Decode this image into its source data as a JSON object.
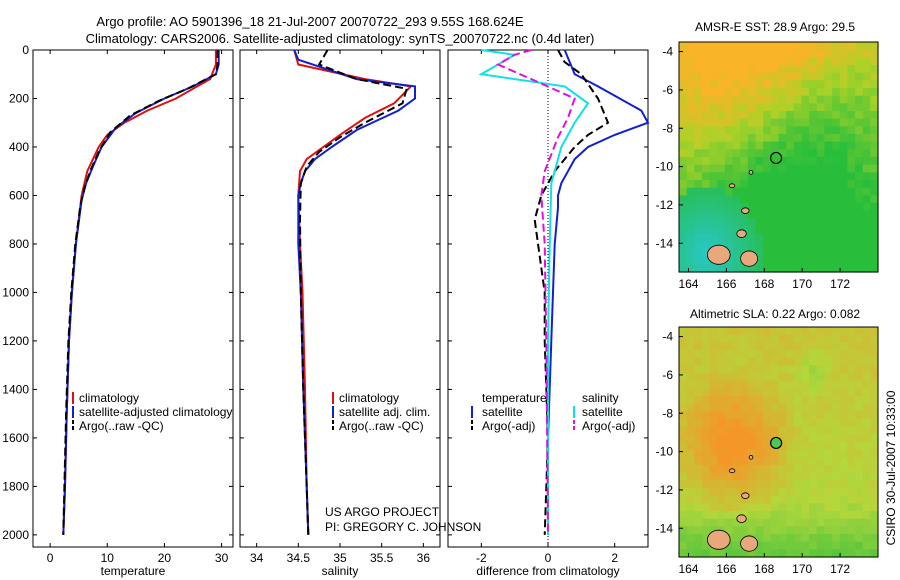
{
  "header": {
    "line1": "Argo profile: AO 5901396_18 21-Jul-2007 20070722_293 9.55S 168.624E",
    "line2": "Climatology: CARS2006. Satellite-adjusted climatology: synTS_20070722.nc (0.4d later)"
  },
  "side_stamp": "CSIRO 30-Jul-2007 10:33:00",
  "project": {
    "line1": "US ARGO PROJECT",
    "line2": "PI: GREGORY C. JOHNSON"
  },
  "colors": {
    "red": "#e01010",
    "blue": "#1020d0",
    "black": "#000000",
    "cyan": "#10e0e8",
    "magenta": "#e010e0"
  },
  "chart_data": [
    {
      "type": "line",
      "title": "",
      "xlabel": "temperature",
      "ylabel": "",
      "xlim": [
        -3,
        32
      ],
      "ylim": [
        2050,
        0
      ],
      "xticks": [
        0,
        10,
        20,
        30
      ],
      "yticks": [
        0,
        200,
        400,
        600,
        800,
        1000,
        1200,
        1400,
        1600,
        1800,
        2000
      ],
      "legend": [
        "climatology",
        "satellite-adjusted climatology",
        "Argo(..raw -QC)"
      ],
      "series": [
        {
          "name": "climatology",
          "color": "red",
          "dash": "solid",
          "x": [
            29,
            29,
            28,
            22,
            17,
            13,
            10,
            8.5,
            7.5,
            6.5,
            5.5,
            4.5,
            3.8,
            3.3,
            2.9,
            2.6,
            2.3
          ],
          "y": [
            0,
            60,
            120,
            200,
            250,
            300,
            350,
            400,
            450,
            500,
            600,
            800,
            1000,
            1200,
            1500,
            1800,
            2000
          ]
        },
        {
          "name": "satellite-adjusted climatology",
          "color": "blue",
          "dash": "solid",
          "x": [
            29.5,
            29.5,
            29,
            25,
            20,
            15,
            11.5,
            9,
            7.5,
            6.3,
            5.5,
            4.5,
            3.8,
            3.3,
            2.9,
            2.6,
            2.3
          ],
          "y": [
            0,
            60,
            100,
            150,
            200,
            260,
            320,
            400,
            480,
            550,
            620,
            800,
            1000,
            1200,
            1500,
            1800,
            2000
          ]
        },
        {
          "name": "Argo(..raw -QC)",
          "color": "black",
          "dash": "dash",
          "x": [
            29.3,
            29.3,
            29,
            24,
            19,
            14,
            10.5,
            8.5,
            7,
            6,
            5.3,
            4.4,
            3.7,
            3.2,
            2.8,
            2.5,
            2.3
          ],
          "y": [
            0,
            60,
            100,
            160,
            210,
            270,
            340,
            420,
            500,
            570,
            640,
            800,
            1000,
            1200,
            1500,
            1800,
            2000
          ]
        }
      ]
    },
    {
      "type": "line",
      "xlabel": "salinity",
      "xlim": [
        33.8,
        36.2
      ],
      "ylim": [
        2050,
        0
      ],
      "xticks": [
        34,
        34.5,
        35,
        35.5,
        36
      ],
      "xticklabels": [
        "34",
        "34.5",
        "35",
        "35.5",
        "36"
      ],
      "legend": [
        "climatology",
        "satellite adj. clim.",
        "Argo(..raw -QC)"
      ],
      "series": [
        {
          "name": "climatology",
          "color": "red",
          "dash": "solid",
          "x": [
            34.45,
            34.5,
            35.3,
            35.85,
            35.65,
            35.3,
            35.0,
            34.8,
            34.6,
            34.52,
            34.5,
            34.52,
            34.55,
            34.58,
            34.6,
            34.62
          ],
          "y": [
            0,
            60,
            120,
            150,
            220,
            280,
            350,
            400,
            450,
            500,
            600,
            800,
            1000,
            1400,
            1800,
            2000
          ]
        },
        {
          "name": "satellite adj. clim.",
          "color": "blue",
          "dash": "solid",
          "x": [
            34.45,
            34.5,
            35.2,
            35.9,
            35.9,
            35.7,
            35.2,
            34.9,
            34.7,
            34.58,
            34.53,
            34.5,
            34.5,
            34.53,
            34.56,
            34.6,
            34.62
          ],
          "y": [
            0,
            40,
            120,
            150,
            200,
            250,
            330,
            400,
            450,
            500,
            550,
            600,
            800,
            1000,
            1400,
            1800,
            2000
          ]
        },
        {
          "name": "Argo(..raw -QC)",
          "color": "black",
          "dash": "dash",
          "x": [
            34.85,
            34.75,
            35.2,
            35.8,
            35.75,
            35.3,
            35.0,
            34.75,
            34.6,
            34.53,
            34.52,
            34.53,
            34.56,
            34.6,
            34.62
          ],
          "y": [
            0,
            60,
            120,
            160,
            220,
            300,
            360,
            420,
            480,
            550,
            700,
            1000,
            1400,
            1800,
            2000
          ]
        }
      ]
    },
    {
      "type": "line",
      "xlabel": "difference from climatology",
      "xlim": [
        -3,
        3
      ],
      "ylim": [
        2050,
        0
      ],
      "xticks": [
        -2,
        0,
        2
      ],
      "legend_groups": [
        {
          "title": "temperature",
          "items": [
            "satellite",
            "Argo(-adj)"
          ]
        },
        {
          "title": "salinity",
          "items": [
            "satellite",
            "Argo(-adj)"
          ]
        }
      ],
      "series": [
        {
          "name": "temperature satellite",
          "color": "blue",
          "dash": "solid",
          "x": [
            0.5,
            0.8,
            1.5,
            2.8,
            3.0,
            2.0,
            1.2,
            0.8,
            0.6,
            0.4,
            0.3,
            0.3,
            0.2,
            0.1,
            0.0,
            0.0
          ],
          "y": [
            0,
            100,
            150,
            250,
            300,
            350,
            400,
            450,
            500,
            550,
            600,
            650,
            800,
            1200,
            1600,
            2000
          ]
        },
        {
          "name": "temperature Argo(-adj)",
          "color": "black",
          "dash": "dash",
          "x": [
            0.3,
            0.5,
            1.0,
            1.5,
            1.8,
            1.2,
            0.8,
            0.5,
            0.2,
            0.0,
            -0.2,
            -0.4,
            -0.1,
            -0.1,
            0.0,
            -0.1
          ],
          "y": [
            0,
            50,
            100,
            200,
            300,
            350,
            400,
            450,
            500,
            550,
            600,
            700,
            1000,
            1200,
            1600,
            2000
          ]
        },
        {
          "name": "salinity satellite",
          "color": "cyan",
          "dash": "solid",
          "x": [
            -2.0,
            -1.0,
            -2.0,
            0.5,
            1.2,
            0.8,
            0.4,
            0.3,
            0.2,
            0.1,
            0.05,
            0.0,
            0.0,
            0.0
          ],
          "y": [
            0,
            20,
            100,
            150,
            220,
            300,
            400,
            450,
            500,
            550,
            800,
            1200,
            1600,
            2000
          ]
        },
        {
          "name": "salinity Argo(-adj)",
          "color": "magenta",
          "dash": "dash",
          "x": [
            -0.5,
            -1.0,
            -1.5,
            -0.5,
            0.8,
            0.6,
            0.3,
            -0.1,
            -0.2,
            -0.1,
            -0.05,
            0.0
          ],
          "y": [
            0,
            20,
            60,
            120,
            200,
            280,
            360,
            500,
            600,
            800,
            1200,
            2000
          ]
        }
      ]
    },
    {
      "type": "heatmap",
      "title": "AMSR-E SST: 28.9 Argo: 29.5",
      "xlim": [
        163.5,
        174
      ],
      "ylim": [
        -15.5,
        -3.5
      ],
      "xticks": [
        164,
        166,
        168,
        170,
        172
      ],
      "yticks": [
        -4,
        -6,
        -8,
        -10,
        -12,
        -14
      ],
      "argo_position": {
        "lon": 168.624,
        "lat": -9.55
      }
    },
    {
      "type": "heatmap",
      "title": "Altimetric SLA: 0.22 Argo: 0.082",
      "xlim": [
        163.5,
        174
      ],
      "ylim": [
        -15.5,
        -3.5
      ],
      "xticks": [
        164,
        166,
        168,
        170,
        172
      ],
      "yticks": [
        -4,
        -6,
        -8,
        -10,
        -12,
        -14
      ],
      "argo_position": {
        "lon": 168.624,
        "lat": -9.55
      }
    }
  ]
}
